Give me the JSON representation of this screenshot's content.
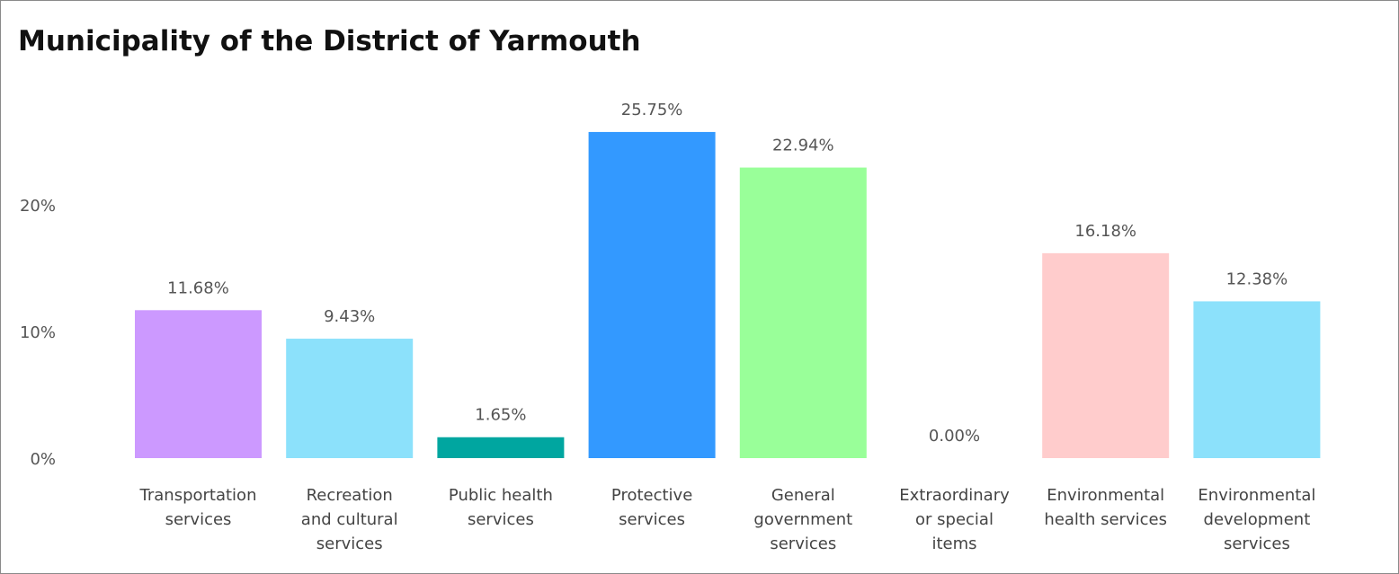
{
  "chart_data": {
    "type": "bar",
    "title": "Municipality of the District of Yarmouth",
    "xlabel": "",
    "ylabel": "",
    "ylim": [
      0,
      27
    ],
    "yticks": [
      0,
      10,
      20
    ],
    "ytick_labels": [
      "0%",
      "10%",
      "20%"
    ],
    "grid": false,
    "legend": "none",
    "categories": [
      [
        "Transportation",
        "services"
      ],
      [
        "Recreation",
        "and cultural",
        "services"
      ],
      [
        "Public health",
        "services"
      ],
      [
        "Protective",
        "services"
      ],
      [
        "General",
        "government",
        "services"
      ],
      [
        "Extraordinary",
        "or special",
        "items"
      ],
      [
        "Environmental",
        "health services"
      ],
      [
        "Environmental",
        "development",
        "services"
      ]
    ],
    "values": [
      11.68,
      9.43,
      1.65,
      25.75,
      22.94,
      0.0,
      16.18,
      12.38
    ],
    "value_labels": [
      "11.68%",
      "9.43%",
      "1.65%",
      "25.75%",
      "22.94%",
      "0.00%",
      "16.18%",
      "12.38%"
    ],
    "colors": [
      "#cc99ff",
      "#8ce1fb",
      "#00a6a0",
      "#3399ff",
      "#99ff99",
      "#dddddd",
      "#ffcccc",
      "#8ce1fb"
    ]
  }
}
